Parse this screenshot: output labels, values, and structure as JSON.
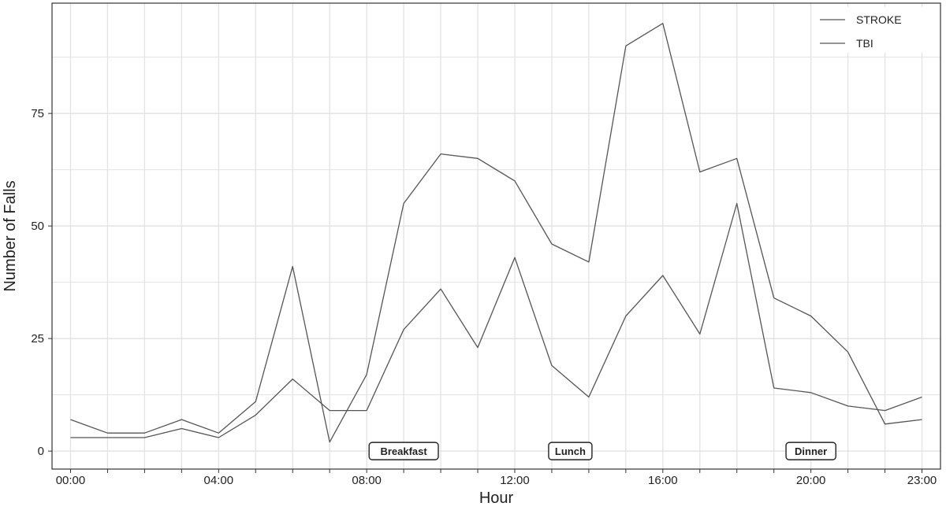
{
  "chart_data": {
    "type": "line",
    "xlabel": "Hour",
    "ylabel": "Number of Falls",
    "x": [
      0,
      1,
      2,
      3,
      4,
      5,
      6,
      7,
      8,
      9,
      10,
      11,
      12,
      13,
      14,
      15,
      16,
      17,
      18,
      19,
      20,
      21,
      22,
      23
    ],
    "xticks": [
      0,
      4,
      8,
      12,
      16,
      20,
      23
    ],
    "xtick_labels": [
      "00:00",
      "04:00",
      "08:00",
      "12:00",
      "16:00",
      "20:00",
      "23:00"
    ],
    "yticks": [
      0,
      25,
      50,
      75
    ],
    "ytick_labels": [
      "0",
      "25",
      "50",
      "75"
    ],
    "xlim": [
      -0.5,
      23.5
    ],
    "ylim": [
      -4,
      99.5
    ],
    "grid": true,
    "legend_position": "top-right",
    "series": [
      {
        "name": "STROKE",
        "values": [
          7,
          4,
          4,
          7,
          4,
          11,
          41,
          2,
          17,
          55,
          66,
          65,
          60,
          46,
          42,
          90,
          95,
          62,
          65,
          34,
          30,
          22,
          6,
          7
        ]
      },
      {
        "name": "TBI",
        "values": [
          3,
          3,
          3,
          5,
          3,
          8,
          16,
          9,
          9,
          27,
          36,
          23,
          43,
          19,
          12,
          30,
          39,
          26,
          55,
          14,
          13,
          10,
          9,
          12
        ]
      }
    ],
    "annotations": [
      {
        "text": "Breakfast",
        "x": 9,
        "y": 0
      },
      {
        "text": "Lunch",
        "x": 13.5,
        "y": 0
      },
      {
        "text": "Dinner",
        "x": 20,
        "y": 0
      }
    ],
    "colors": {
      "line": "#555555",
      "grid": "#e3e3e3",
      "frame": "#333333"
    }
  }
}
